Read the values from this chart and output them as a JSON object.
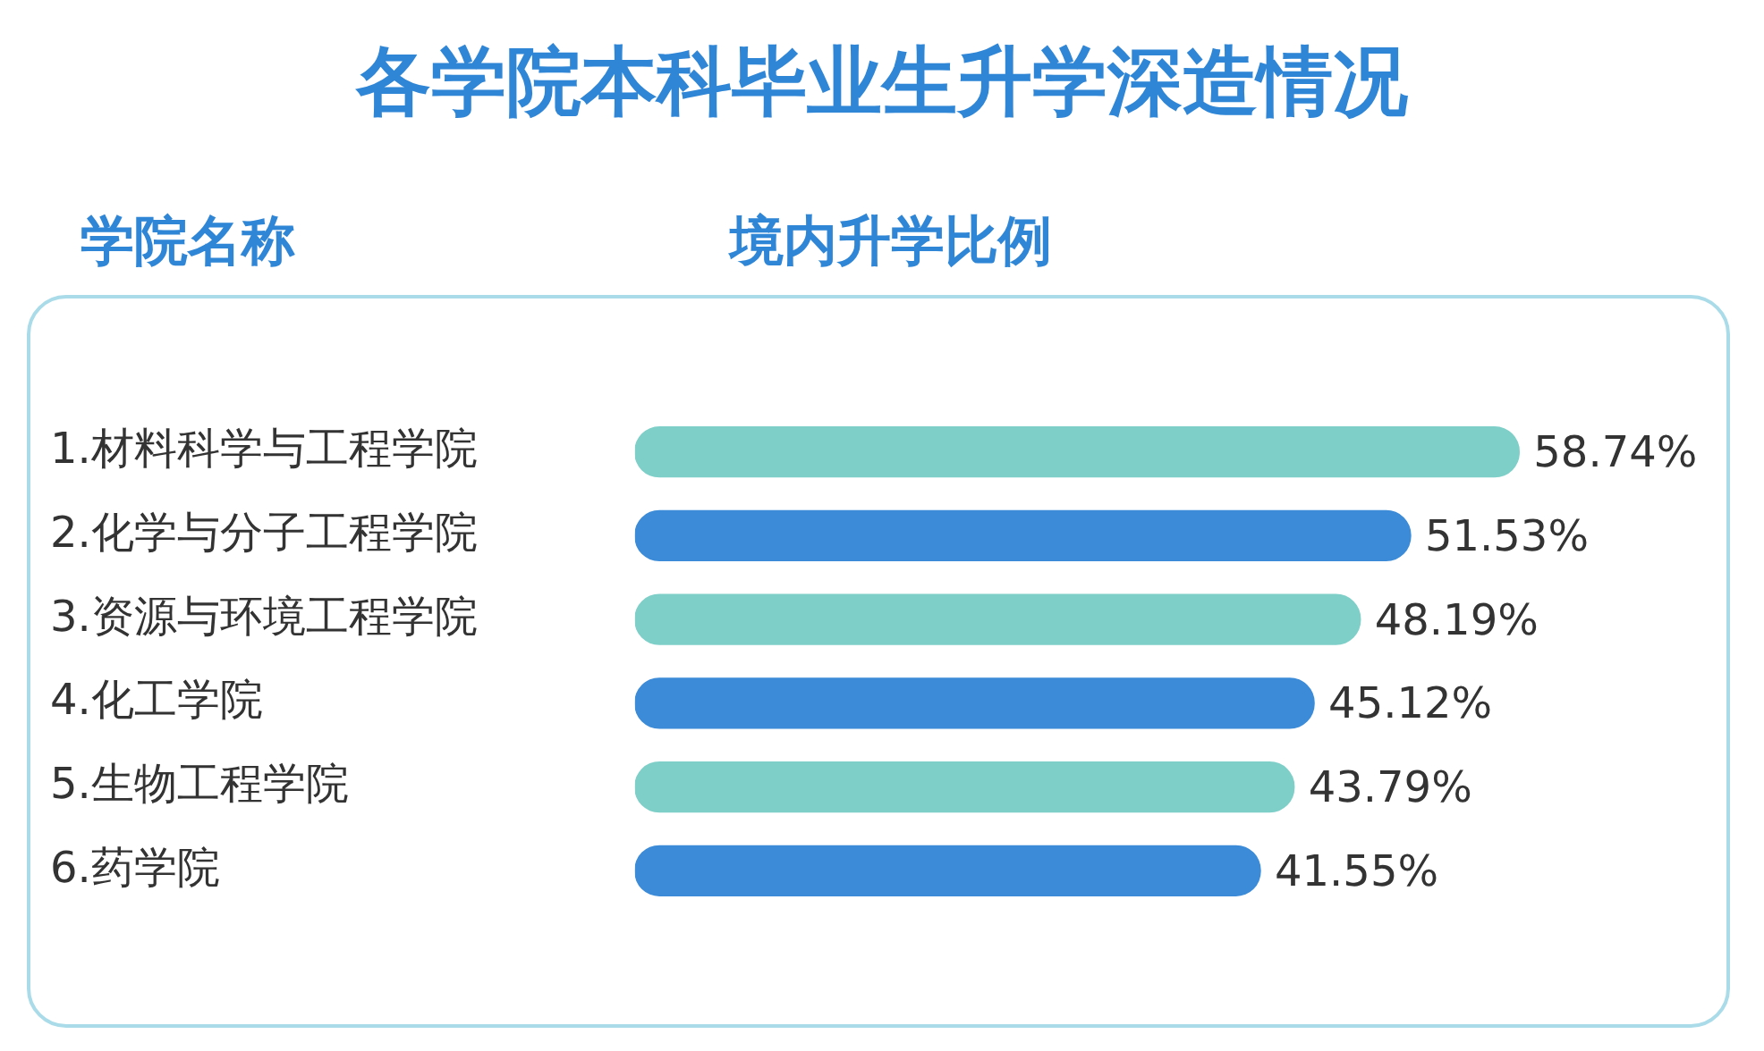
{
  "chart_data": {
    "type": "bar",
    "orientation": "horizontal",
    "title": "各学院本科毕业生升学深造情况",
    "ylabel": "学院名称",
    "xlabel": "境内升学比例",
    "categories": [
      "1.材料科学与工程学院",
      "2.化学与分子工程学院",
      "3.资源与环境工程学院",
      "4.化工学院",
      "5.生物工程学院",
      "6.药学院"
    ],
    "values": [
      58.74,
      51.53,
      48.19,
      45.12,
      43.79,
      41.55
    ],
    "colors": [
      "#7fcfc9",
      "#3b8bd8",
      "#7fcfc9",
      "#3b8bd8",
      "#7fcfc9",
      "#3b8bd8"
    ],
    "value_labels": [
      "58.74%",
      "51.53%",
      "48.19%",
      "45.12%",
      "43.79%",
      "41.55%"
    ],
    "grid": false,
    "legend": false
  }
}
